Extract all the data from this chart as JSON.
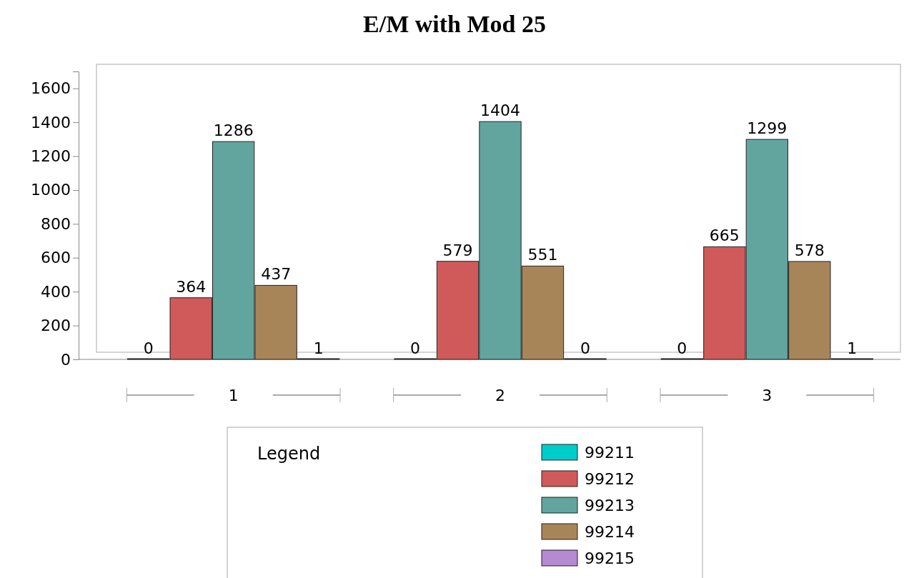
{
  "chart_data": {
    "type": "bar",
    "title": "E/M with Mod 25",
    "categories": [
      "1",
      "2",
      "3"
    ],
    "series": [
      {
        "name": "99211",
        "color": "#00cccc",
        "values": [
          0,
          0,
          0
        ]
      },
      {
        "name": "99212",
        "color": "#d05a5a",
        "values": [
          364,
          579,
          665
        ]
      },
      {
        "name": "99213",
        "color": "#62a59e",
        "values": [
          1286,
          1404,
          1299
        ]
      },
      {
        "name": "99214",
        "color": "#a88558",
        "values": [
          437,
          551,
          578
        ]
      },
      {
        "name": "99215",
        "color": "#b48ad0",
        "values": [
          1,
          0,
          1
        ]
      }
    ],
    "ylim": [
      0,
      1700
    ],
    "yticks": [
      0,
      200,
      400,
      600,
      800,
      1000,
      1200,
      1400,
      1600
    ],
    "grid": false,
    "legend": "bottom",
    "legend_title": "Legend",
    "data_labels": true
  }
}
